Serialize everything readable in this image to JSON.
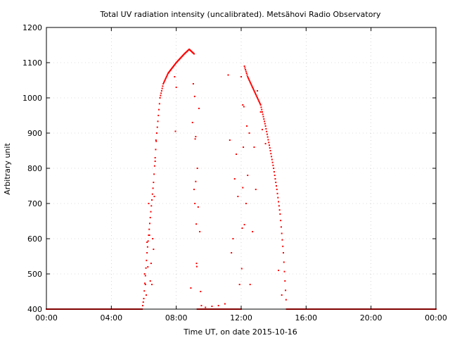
{
  "chart_data": {
    "type": "scatter",
    "title": "Total UV radiation intensity (uncalibrated). Metsähovi Radio Observatory",
    "xlabel": "Time UT, on date 2015-10-16",
    "ylabel": "Arbitrary unit",
    "xlim": [
      "00:00",
      "24:00"
    ],
    "ylim": [
      400,
      1200
    ],
    "x_ticks": [
      "00:00",
      "04:00",
      "08:00",
      "12:00",
      "16:00",
      "20:00",
      "00:00"
    ],
    "y_ticks": [
      400,
      500,
      600,
      700,
      800,
      900,
      1000,
      1100,
      1200
    ],
    "grid": true,
    "legend": "none",
    "marker_color": "#ff0000",
    "x_unit": "hours UT",
    "envelope": [
      [
        0.0,
        400
      ],
      [
        5.9,
        400
      ],
      [
        6.0,
        430
      ],
      [
        6.2,
        560
      ],
      [
        6.4,
        660
      ],
      [
        6.6,
        760
      ],
      [
        6.8,
        900
      ],
      [
        7.0,
        1000
      ],
      [
        7.2,
        1040
      ],
      [
        7.5,
        1070
      ],
      [
        8.0,
        1100
      ],
      [
        8.5,
        1125
      ],
      [
        8.8,
        1138
      ],
      [
        9.1,
        1125
      ],
      [
        9.3,
        400
      ],
      [
        12.0,
        400
      ],
      [
        12.2,
        1090
      ],
      [
        12.4,
        1060
      ],
      [
        12.6,
        1040
      ],
      [
        12.9,
        1010
      ],
      [
        13.2,
        980
      ],
      [
        13.5,
        920
      ],
      [
        13.8,
        850
      ],
      [
        14.0,
        800
      ],
      [
        14.2,
        740
      ],
      [
        14.4,
        670
      ],
      [
        14.6,
        560
      ],
      [
        14.8,
        400
      ],
      [
        24.0,
        400
      ]
    ],
    "scatter": [
      [
        6.05,
        500
      ],
      [
        6.1,
        470
      ],
      [
        6.15,
        440
      ],
      [
        6.2,
        590
      ],
      [
        6.25,
        520
      ],
      [
        6.3,
        700
      ],
      [
        6.35,
        610
      ],
      [
        6.4,
        480
      ],
      [
        6.45,
        530
      ],
      [
        6.5,
        470
      ],
      [
        6.55,
        600
      ],
      [
        6.6,
        570
      ],
      [
        6.65,
        720
      ],
      [
        6.7,
        820
      ],
      [
        6.75,
        880
      ],
      [
        7.9,
        1060
      ],
      [
        7.95,
        905
      ],
      [
        8.0,
        1030
      ],
      [
        8.9,
        460
      ],
      [
        9.0,
        930
      ],
      [
        9.05,
        1040
      ],
      [
        9.1,
        740
      ],
      [
        9.15,
        700
      ],
      [
        9.2,
        890
      ],
      [
        9.25,
        530
      ],
      [
        9.3,
        800
      ],
      [
        9.35,
        690
      ],
      [
        9.4,
        970
      ],
      [
        9.45,
        620
      ],
      [
        9.5,
        450
      ],
      [
        9.55,
        410
      ],
      [
        9.8,
        405
      ],
      [
        10.2,
        408
      ],
      [
        10.6,
        410
      ],
      [
        11.0,
        415
      ],
      [
        11.2,
        1065
      ],
      [
        11.3,
        880
      ],
      [
        11.4,
        560
      ],
      [
        11.5,
        600
      ],
      [
        11.6,
        770
      ],
      [
        11.7,
        840
      ],
      [
        11.8,
        720
      ],
      [
        11.9,
        470
      ],
      [
        12.0,
        1060
      ],
      [
        12.1,
        980
      ],
      [
        12.2,
        640
      ],
      [
        12.3,
        700
      ],
      [
        12.35,
        920
      ],
      [
        12.4,
        780
      ],
      [
        12.5,
        900
      ],
      [
        12.55,
        470
      ],
      [
        12.7,
        620
      ],
      [
        12.8,
        860
      ],
      [
        12.9,
        740
      ],
      [
        13.0,
        1020
      ],
      [
        13.2,
        960
      ],
      [
        13.3,
        910
      ],
      [
        13.5,
        870
      ],
      [
        14.3,
        510
      ],
      [
        14.5,
        440
      ]
    ]
  }
}
